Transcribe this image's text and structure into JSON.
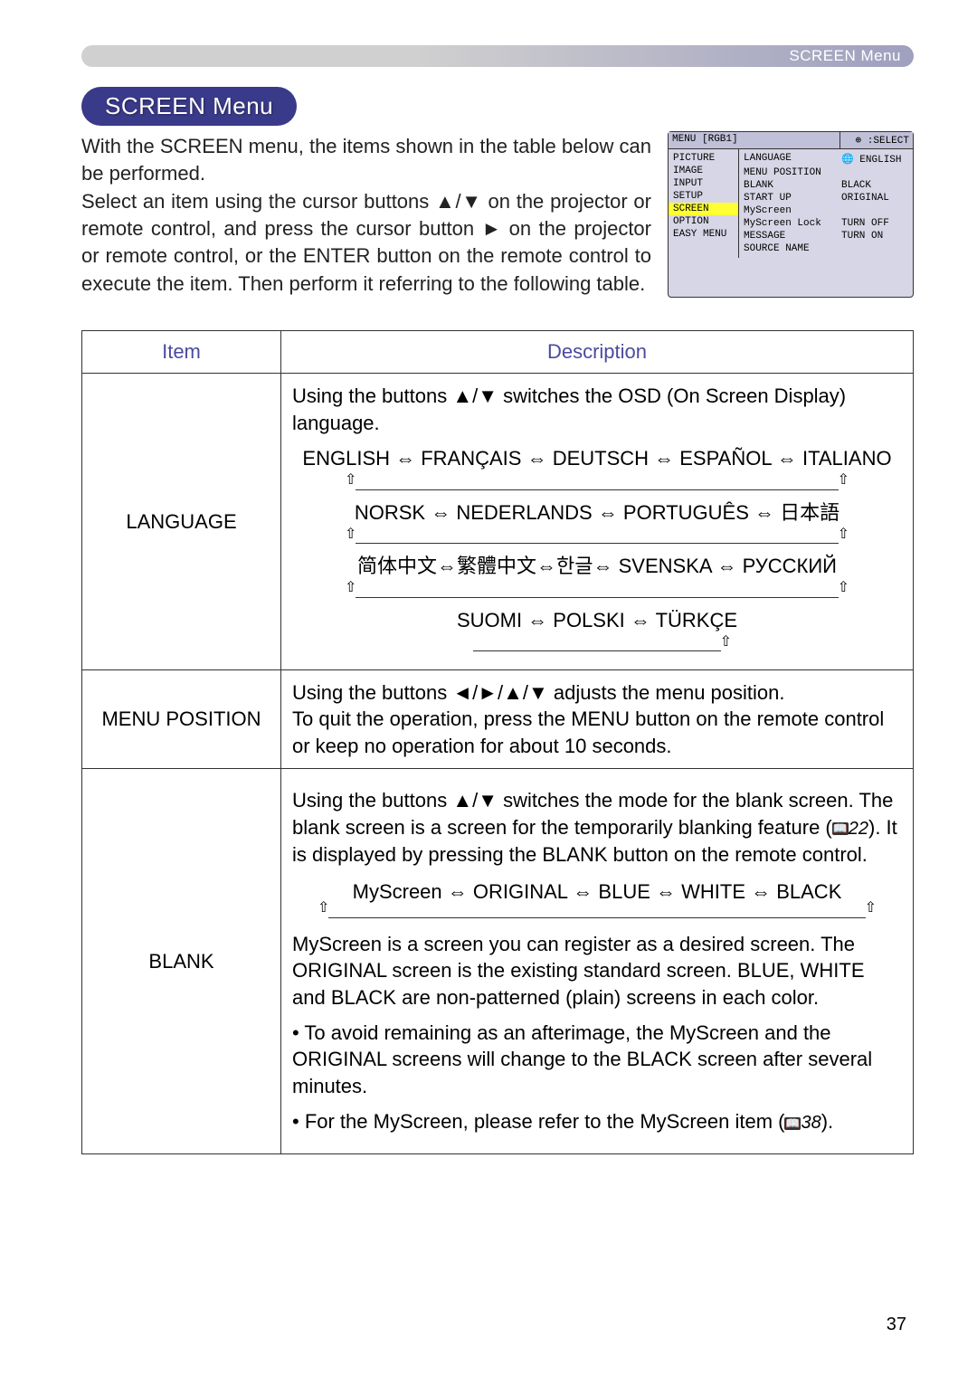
{
  "header": {
    "section_label": "SCREEN Menu"
  },
  "title": "SCREEN Menu",
  "intro": {
    "p1": "With the SCREEN menu, the items shown in the table below can be performed.",
    "p2": "Select an item using the cursor buttons ▲/▼ on the projector or remote control, and press the cursor button ► on the projector or remote control, or the ENTER button on the remote control to execute the item. Then perform it referring to the following table."
  },
  "osd": {
    "menu_label": "MENU [RGB1]",
    "select_label": ":SELECT",
    "left_items": [
      "PICTURE",
      "IMAGE",
      "INPUT",
      "SETUP",
      "SCREEN",
      "OPTION",
      "EASY MENU"
    ],
    "highlight_index": 4,
    "right_rows": [
      {
        "l": "LANGUAGE",
        "r": "🌐 ENGLISH"
      },
      {
        "l": "MENU POSITION",
        "r": ""
      },
      {
        "l": "BLANK",
        "r": "BLACK"
      },
      {
        "l": "START UP",
        "r": "ORIGINAL"
      },
      {
        "l": "MyScreen",
        "r": ""
      },
      {
        "l": "MyScreen Lock",
        "r": "TURN OFF"
      },
      {
        "l": "MESSAGE",
        "r": "TURN ON"
      },
      {
        "l": "SOURCE NAME",
        "r": ""
      }
    ]
  },
  "table": {
    "head_item": "Item",
    "head_desc": "Description",
    "rows": {
      "language": {
        "item": "LANGUAGE",
        "lead": "Using the buttons ▲/▼ switches the OSD (On Screen Display) language.",
        "cycle_lines": [
          "ENGLISH ⇔ FRANÇAIS ⇔ DEUTSCH ⇔ ESPAÑOL ⇔ ITALIANO",
          "NORSK ⇔ NEDERLANDS ⇔ PORTUGUÊS ⇔ 日本語",
          "简体中文⇔繁體中文⇔한글⇔ SVENSKA ⇔ РУССКИЙ",
          "SUOMI ⇔ POLSKI ⇔ TÜRKÇE"
        ]
      },
      "menu_position": {
        "item": "MENU POSITION",
        "text": "Using the buttons ◄/►/▲/▼ adjusts the menu position.\nTo quit the operation, press the MENU button on the remote control or keep no operation for about 10 seconds."
      },
      "blank": {
        "item": "BLANK",
        "p1a": "Using the buttons ▲/▼ switches the mode for the blank screen. The blank screen is a screen for the temporarily blanking feature (",
        "ref1": "22",
        "p1b": "). It is displayed by pressing the BLANK button on the remote control.",
        "cycle": "MyScreen ⇔ ORIGINAL ⇔ BLUE ⇔ WHITE ⇔ BLACK",
        "p2": "MyScreen is a screen you can register as a desired screen. The ORIGINAL screen is the existing standard screen. BLUE, WHITE and BLACK are non-patterned (plain) screens in each color.",
        "p3": "• To avoid remaining as an afterimage, the MyScreen and the ORIGINAL screens will change to the BLACK screen after several minutes.",
        "p4a": "• For the MyScreen, please refer to the MyScreen item (",
        "ref2": "38",
        "p4b": ")."
      }
    }
  },
  "page_number": "37",
  "colors": {
    "pill_bg": "#3a3a8a",
    "header_text": "#ffffff",
    "th_text": "#4a4aa0"
  }
}
